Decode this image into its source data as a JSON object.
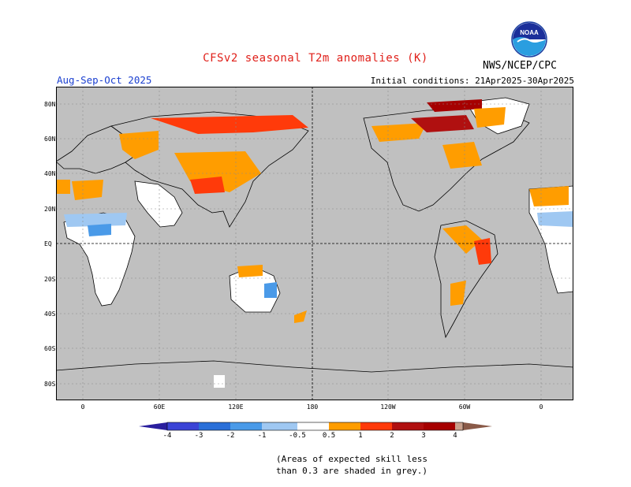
{
  "header": {
    "title": "CFSv2 seasonal T2m anomalies (K)",
    "season": "Aug-Sep-Oct 2025",
    "initial_conditions": "Initial conditions: 21Apr2025-30Apr2025",
    "agency": "NWS/NCEP/CPC",
    "logo_text": "NOAA"
  },
  "map": {
    "lat_labels": [
      "80N",
      "60N",
      "40N",
      "20N",
      "EQ",
      "20S",
      "40S",
      "60S",
      "80S"
    ],
    "lon_labels": [
      "0",
      "60E",
      "120E",
      "180",
      "120W",
      "60W",
      "0"
    ],
    "colors": {
      "land_grey": "#c0c0c0",
      "ocean_white": "#ffffff"
    }
  },
  "colorbar": {
    "labels": [
      "-4",
      "-3",
      "-2",
      "-1",
      "-0.5",
      "0.5",
      "1",
      "2",
      "3",
      "4"
    ],
    "colors": [
      "#2a1f9e",
      "#3b44d6",
      "#2a6fd8",
      "#4a9ae8",
      "#9fc8f2",
      "#ffffff",
      "#ff9d00",
      "#ff3a0a",
      "#b01010",
      "#a60000",
      "#c9a08c",
      "#8a5a48"
    ]
  },
  "footnote": {
    "line1": "(Areas of expected skill less",
    "line2": "than 0.3 are shaded in grey.)"
  }
}
